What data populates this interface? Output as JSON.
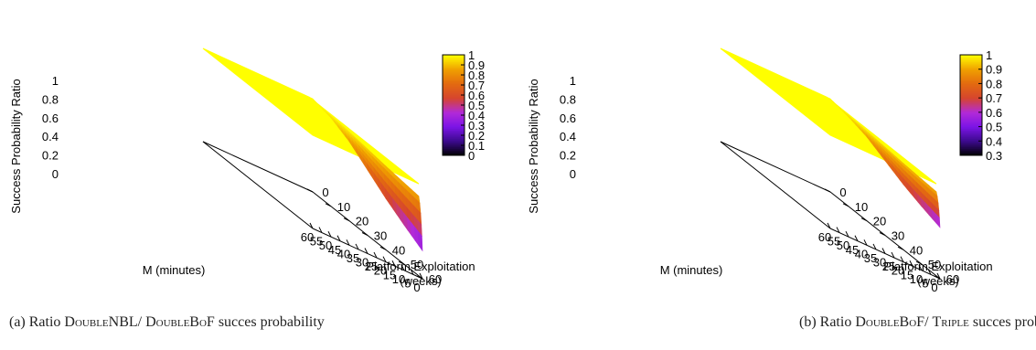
{
  "panels": [
    {
      "caption": {
        "prefix": "(a) Ratio ",
        "name1": "DoubleNBL",
        "sep": "/ ",
        "name2": "DoubleBoF",
        "suffix": " succes probability"
      }
    },
    {
      "caption": {
        "prefix": "(b) Ratio ",
        "name1": "DoubleBoF",
        "sep": "/ ",
        "name2": "Triple",
        "suffix": " succes probability"
      }
    }
  ],
  "chart_data": [
    {
      "type": "surface",
      "title": "",
      "zlabel": "Success Probability Ratio",
      "xlabel": "M (minutes)",
      "ylabel": "Platform Exploitation (weeks)",
      "x_ticks": [
        "60",
        "55",
        "50",
        "45",
        "40",
        "35",
        "30",
        "25",
        "20",
        "15",
        "10",
        "5",
        "0"
      ],
      "y_ticks": [
        "0",
        "10",
        "20",
        "30",
        "40",
        "50",
        "60"
      ],
      "z_ticks": [
        "1",
        "0.8",
        "0.6",
        "0.4",
        "0.2",
        "0"
      ],
      "zlim": [
        0,
        1
      ],
      "colorbar": {
        "ticks": [
          "1",
          "0.9",
          "0.8",
          "0.7",
          "0.6",
          "0.5",
          "0.4",
          "0.3",
          "0.2",
          "0.1",
          "0"
        ],
        "range": [
          0,
          1
        ],
        "palette": [
          "#000000",
          "#3b0a8c",
          "#7b14e6",
          "#b22ad8",
          "#d6452e",
          "#e36a10",
          "#f0a000",
          "#ffff00"
        ]
      },
      "surface_summary": {
        "plateau_value": 1,
        "corner_value_M0_week60": 0.3,
        "edge_values_M0": [
          [
            0,
            1
          ],
          [
            10,
            0.95
          ],
          [
            20,
            0.85
          ],
          [
            30,
            0.7
          ],
          [
            40,
            0.55
          ],
          [
            50,
            0.42
          ],
          [
            60,
            0.3
          ]
        ]
      }
    },
    {
      "type": "surface",
      "title": "",
      "zlabel": "Success Probability Ratio",
      "xlabel": "M (minutes)",
      "ylabel": "Platform Exploitation (weeks)",
      "x_ticks": [
        "60",
        "55",
        "50",
        "45",
        "40",
        "35",
        "30",
        "25",
        "20",
        "15",
        "10",
        "5",
        "0"
      ],
      "y_ticks": [
        "0",
        "10",
        "20",
        "30",
        "40",
        "50",
        "60"
      ],
      "z_ticks": [
        "1",
        "0.8",
        "0.6",
        "0.4",
        "0.2",
        "0"
      ],
      "zlim": [
        0,
        1
      ],
      "colorbar": {
        "ticks": [
          "1",
          "0.9",
          "0.8",
          "0.7",
          "0.6",
          "0.5",
          "0.4",
          "0.3"
        ],
        "range": [
          0.3,
          1
        ],
        "palette": [
          "#000000",
          "#3b0a8c",
          "#7b14e6",
          "#b22ad8",
          "#d6452e",
          "#e36a10",
          "#f0a000",
          "#ffff00"
        ]
      },
      "surface_summary": {
        "plateau_value": 1,
        "corner_value_M0_week60": 0.55,
        "edge_values_M0": [
          [
            0,
            1
          ],
          [
            10,
            0.96
          ],
          [
            20,
            0.9
          ],
          [
            30,
            0.8
          ],
          [
            40,
            0.7
          ],
          [
            50,
            0.62
          ],
          [
            60,
            0.55
          ]
        ]
      }
    }
  ]
}
